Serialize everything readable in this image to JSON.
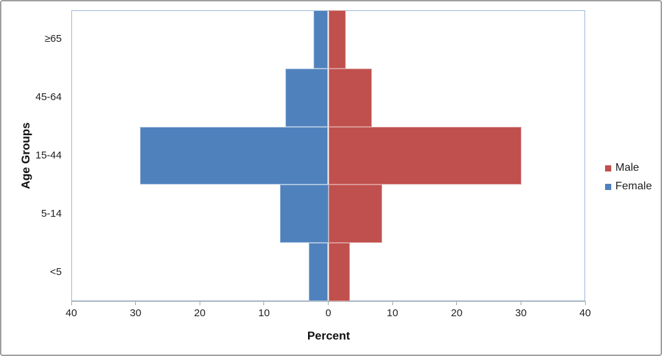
{
  "chart_data": {
    "type": "bar",
    "subtype": "population-pyramid",
    "orientation": "horizontal",
    "title": "",
    "xlabel": "Percent",
    "ylabel": "Age Groups",
    "categories": [
      "≥65",
      "45-64",
      "15-44",
      "5-14",
      "<5"
    ],
    "series": [
      {
        "name": "Male",
        "side": "right",
        "color": "#C0504D",
        "border_color": "#D99795",
        "values": [
          2.7,
          6.8,
          30.1,
          8.4,
          3.4
        ]
      },
      {
        "name": "Female",
        "side": "left",
        "color": "#4F81BD",
        "border_color": "#A9C2DE",
        "values": [
          2.3,
          6.7,
          29.3,
          7.5,
          3.0
        ]
      }
    ],
    "x_axis": {
      "min": -40,
      "max": 40,
      "tick_labels": [
        "40",
        "30",
        "20",
        "10",
        "0",
        "10",
        "20",
        "30",
        "40"
      ]
    },
    "legend": {
      "position": "right",
      "entries": [
        "Male",
        "Female"
      ]
    },
    "grid": false
  },
  "colors": {
    "male": "#C0504D",
    "female": "#4F81BD",
    "plot_border": "#9BB7DA",
    "axis_line": "#B3B3B3",
    "tick": "#A6A6A6",
    "text": "#1F1F1F",
    "frame_border": "#9E9E9E"
  }
}
